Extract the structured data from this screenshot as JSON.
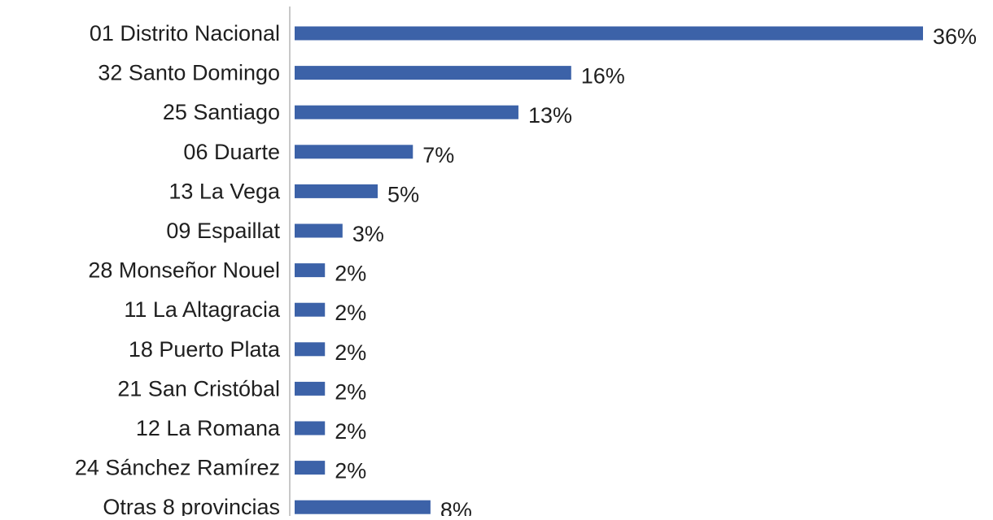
{
  "chart_data": {
    "type": "bar",
    "orientation": "horizontal",
    "title": "",
    "xlabel": "",
    "ylabel": "",
    "categories": [
      "01 Distrito Nacional",
      "32 Santo Domingo",
      "25 Santiago",
      "06 Duarte",
      "13 La Vega",
      "09 Espaillat",
      "28 Monseñor Nouel",
      "11 La Altagracia",
      "18 Puerto Plata",
      "21 San Cristóbal",
      "12 La Romana",
      "24 Sánchez Ramírez",
      "Otras 8 provincias"
    ],
    "values": [
      36,
      16,
      13,
      7,
      5,
      3,
      2,
      2,
      2,
      2,
      2,
      2,
      8
    ],
    "value_labels": [
      "36%",
      "16%",
      "13%",
      "7%",
      "5%",
      "3%",
      "2%",
      "2%",
      "2%",
      "2%",
      "2%",
      "2%",
      "8%"
    ],
    "value_unit": "%",
    "xlim": [
      0,
      36
    ],
    "grid": false,
    "legend": "none",
    "bar_color": "#3c62a8",
    "axis_color": "#c8c8c8"
  }
}
